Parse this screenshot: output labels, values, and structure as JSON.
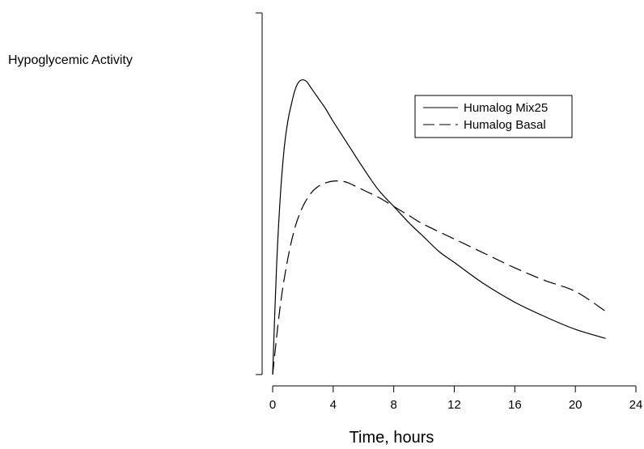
{
  "chart_data": {
    "type": "line",
    "ylabel": "Hypoglycemic Activity",
    "xlabel": "Time, hours",
    "xlim": [
      0,
      24
    ],
    "x_ticks": [
      0,
      4,
      8,
      12,
      16,
      20,
      24
    ],
    "x_tick_labels": [
      "0",
      "4",
      "8",
      "12",
      "16",
      "20",
      "24"
    ],
    "ylim": [
      0,
      1
    ],
    "y_ticks_labeled": false,
    "grid": false,
    "legend_position": "top-right",
    "series": [
      {
        "name": "Humalog Mix25",
        "line_style": "solid",
        "x": [
          0,
          0.25,
          0.5,
          0.75,
          1,
          1.25,
          1.5,
          1.75,
          2,
          2.25,
          2.5,
          3,
          3.5,
          4,
          5,
          6,
          7,
          8,
          9,
          10,
          11,
          12,
          14,
          16,
          18,
          20,
          22
        ],
        "y": [
          0,
          0.29,
          0.49,
          0.62,
          0.7,
          0.75,
          0.79,
          0.81,
          0.815,
          0.81,
          0.795,
          0.765,
          0.735,
          0.7,
          0.635,
          0.57,
          0.51,
          0.465,
          0.42,
          0.38,
          0.34,
          0.31,
          0.25,
          0.2,
          0.16,
          0.125,
          0.1
        ]
      },
      {
        "name": "Humalog Basal",
        "line_style": "dashed",
        "x": [
          0,
          0.5,
          1,
          1.5,
          2,
          2.5,
          3,
          3.5,
          4,
          4.5,
          5,
          6,
          7,
          8,
          9,
          10,
          12,
          14,
          16,
          18,
          20,
          22
        ],
        "y": [
          0,
          0.19,
          0.32,
          0.41,
          0.465,
          0.5,
          0.52,
          0.53,
          0.535,
          0.535,
          0.53,
          0.51,
          0.49,
          0.465,
          0.44,
          0.415,
          0.375,
          0.335,
          0.295,
          0.26,
          0.23,
          0.175
        ]
      }
    ]
  }
}
